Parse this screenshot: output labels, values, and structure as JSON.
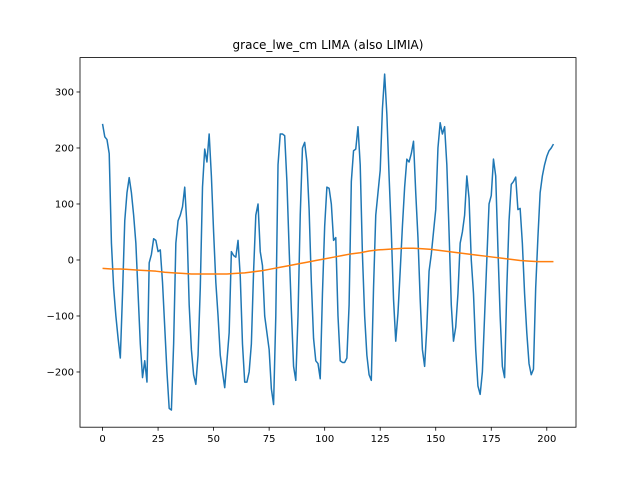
{
  "chart_data": {
    "type": "line",
    "title": "grace_lwe_cm LIMA (also LIMIA)",
    "xlim": [
      -10.15,
      213.15
    ],
    "xticks": [
      0,
      25,
      50,
      75,
      100,
      125,
      150,
      175,
      200
    ],
    "ylim": [
      -298.6,
      361.4
    ],
    "yticks": [
      {
        "value": -200,
        "label": "−200"
      },
      {
        "value": -100,
        "label": "−100"
      },
      0,
      100,
      200,
      300
    ],
    "grid": false,
    "series": [
      {
        "color": "#1f77b4",
        "x": [
          0,
          1,
          2,
          3,
          4,
          5,
          6,
          7,
          8,
          9,
          10,
          11,
          12,
          13,
          14,
          15,
          16,
          17,
          18,
          19,
          20,
          21,
          22,
          23,
          24,
          25,
          26,
          27,
          28,
          29,
          30,
          31,
          32,
          33,
          34,
          35,
          36,
          37,
          38,
          39,
          40,
          41,
          42,
          43,
          44,
          45,
          46,
          47,
          48,
          49,
          50,
          51,
          52,
          53,
          54,
          55,
          56,
          57,
          58,
          59,
          60,
          61,
          62,
          63,
          64,
          65,
          66,
          67,
          68,
          69,
          70,
          71,
          72,
          73,
          74,
          75,
          76,
          77,
          78,
          79,
          80,
          81,
          82,
          83,
          84,
          85,
          86,
          87,
          88,
          89,
          90,
          91,
          92,
          93,
          94,
          95,
          96,
          97,
          98,
          99,
          100,
          101,
          102,
          103,
          104,
          105,
          106,
          107,
          108,
          109,
          110,
          111,
          112,
          113,
          114,
          115,
          116,
          117,
          118,
          119,
          120,
          121,
          122,
          123,
          124,
          125,
          126,
          127,
          128,
          129,
          130,
          131,
          132,
          133,
          134,
          135,
          136,
          137,
          138,
          139,
          140,
          141,
          142,
          143,
          144,
          145,
          146,
          147,
          148,
          149,
          150,
          151,
          152,
          153,
          154,
          155,
          156,
          157,
          158,
          159,
          160,
          161,
          162,
          163,
          164,
          165,
          166,
          167,
          168,
          169,
          170,
          171,
          172,
          173,
          174,
          175,
          176,
          177,
          178,
          179,
          180,
          181,
          182,
          183,
          184,
          185,
          186,
          187,
          188,
          189,
          190,
          191,
          192,
          193,
          194,
          195,
          196,
          197,
          198,
          199,
          200,
          201,
          202,
          203
        ],
        "values": [
          243,
          220,
          215,
          190,
          30,
          -50,
          -100,
          -140,
          -175,
          -60,
          70,
          120,
          147,
          120,
          80,
          30,
          -60,
          -150,
          -210,
          -180,
          -218,
          -5,
          10,
          38,
          35,
          15,
          18,
          -40,
          -120,
          -200,
          -265,
          -268,
          -150,
          30,
          70,
          80,
          95,
          130,
          60,
          -80,
          -160,
          -205,
          -222,
          -170,
          -50,
          130,
          198,
          175,
          225,
          150,
          50,
          -40,
          -100,
          -170,
          -200,
          -228,
          -180,
          -130,
          15,
          8,
          5,
          35,
          -30,
          -150,
          -218,
          -218,
          -200,
          -150,
          -20,
          80,
          100,
          15,
          -10,
          -100,
          -130,
          -160,
          -230,
          -258,
          -100,
          170,
          225,
          225,
          222,
          140,
          20,
          -90,
          -190,
          -215,
          -100,
          80,
          200,
          210,
          175,
          90,
          -40,
          -140,
          -180,
          -185,
          -212,
          -60,
          60,
          130,
          128,
          100,
          35,
          40,
          -100,
          -180,
          -183,
          -183,
          -175,
          -80,
          140,
          195,
          198,
          238,
          170,
          10,
          -100,
          -170,
          -205,
          -215,
          -50,
          80,
          120,
          160,
          270,
          332,
          260,
          150,
          50,
          -70,
          -145,
          -95,
          -20,
          60,
          130,
          180,
          175,
          190,
          212,
          120,
          40,
          -70,
          -160,
          -190,
          -120,
          -20,
          10,
          50,
          90,
          200,
          245,
          225,
          238,
          170,
          50,
          -80,
          -145,
          -120,
          -60,
          30,
          50,
          80,
          150,
          110,
          0,
          -60,
          -160,
          -225,
          -240,
          -200,
          -100,
          0,
          100,
          115,
          180,
          150,
          20,
          -100,
          -190,
          -210,
          -50,
          70,
          135,
          140,
          148,
          90,
          92,
          30,
          -60,
          -130,
          -185,
          -205,
          -195,
          -50,
          40,
          120,
          150,
          170,
          185,
          195,
          200,
          207
        ]
      },
      {
        "color": "#ff7f0e",
        "x": [
          0,
          4,
          8,
          12,
          16,
          20,
          24,
          28,
          32,
          36,
          40,
          44,
          48,
          52,
          56,
          60,
          64,
          68,
          72,
          76,
          80,
          84,
          88,
          92,
          96,
          100,
          104,
          108,
          112,
          116,
          120,
          124,
          128,
          132,
          136,
          140,
          144,
          148,
          152,
          156,
          160,
          164,
          168,
          172,
          176,
          180,
          184,
          188,
          192,
          196,
          200,
          203
        ],
        "values": [
          -15,
          -16,
          -16,
          -17,
          -18,
          -19,
          -20,
          -22,
          -23,
          -24,
          -25,
          -25,
          -25,
          -25,
          -25,
          -24,
          -23,
          -21,
          -19,
          -16,
          -13,
          -10,
          -7,
          -4,
          -1,
          2,
          5,
          8,
          11,
          13,
          16,
          18,
          19,
          20,
          21,
          21,
          20,
          19,
          17,
          15,
          13,
          11,
          9,
          7,
          5,
          3,
          1,
          -1,
          -2,
          -3,
          -3,
          -3
        ]
      }
    ]
  }
}
